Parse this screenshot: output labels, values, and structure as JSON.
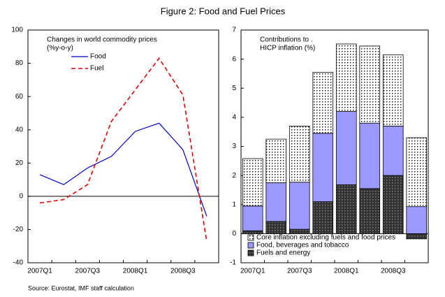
{
  "title": "Figure 2: Food and Fuel Prices",
  "source": "Source: Eurostat, IMF staff calculation",
  "chart_data": [
    {
      "type": "line",
      "annotation": [
        "Changes in world commodity prices",
        "(%y-o-y)"
      ],
      "categories": [
        "2007Q1",
        null,
        "2007Q3",
        null,
        "2008Q1",
        null,
        "2008Q3",
        null
      ],
      "series": [
        {
          "name": "Food",
          "color": "#0000cc",
          "line_style": "solid",
          "values": [
            13,
            7,
            17,
            24,
            39,
            44,
            28,
            -12
          ]
        },
        {
          "name": "Fuel",
          "color": "#e00000",
          "line_style": "dashed",
          "values": [
            -4,
            -2,
            7,
            45,
            64,
            83,
            61,
            -27
          ]
        }
      ],
      "ylim": [
        -40,
        100
      ],
      "yticks": [
        -40,
        -20,
        0,
        20,
        40,
        60,
        80,
        100
      ],
      "legend": "upper left"
    },
    {
      "type": "bar",
      "stacked": true,
      "annotation": [
        "Contributions to .",
        "HICP inflation (%)"
      ],
      "categories": [
        "2007Q1",
        null,
        "2007Q3",
        null,
        "2008Q1",
        null,
        "2008Q3",
        null
      ],
      "series": [
        {
          "name": "Fuels and energy",
          "color": "#333333",
          "pattern": "dots",
          "values": [
            0.1,
            0.42,
            0.15,
            1.1,
            1.68,
            1.55,
            2.0,
            -0.18
          ]
        },
        {
          "name": "Food, beverages and tobacco",
          "color": "#9999ff",
          "pattern": "none",
          "values": [
            0.85,
            1.33,
            1.62,
            2.35,
            2.52,
            2.25,
            1.7,
            0.93
          ]
        },
        {
          "name": "Core inflation excluding fuels and food prices",
          "color": "#ffffff",
          "pattern": "dots",
          "values": [
            1.63,
            1.5,
            1.93,
            2.1,
            2.32,
            2.65,
            2.45,
            2.37
          ]
        }
      ],
      "ylim": [
        -1,
        7
      ],
      "yticks": [
        -1,
        0,
        1,
        2,
        3,
        4,
        5,
        6,
        7
      ],
      "legend": "lower left"
    }
  ]
}
